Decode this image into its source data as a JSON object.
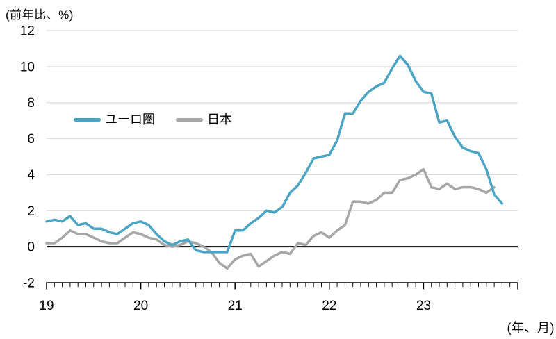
{
  "chart_data": {
    "type": "line",
    "title": "",
    "unit_label": "(前年比、%)",
    "axis_note": "(年、月)",
    "ylabel": "",
    "xlabel": "",
    "ylim": [
      -2,
      12
    ],
    "y_ticks": [
      12,
      10,
      8,
      6,
      4,
      2,
      0,
      -2
    ],
    "x_tick_labels": [
      "19",
      "20",
      "21",
      "22",
      "23"
    ],
    "x_start": "2019-01",
    "frequency": "monthly",
    "grid": "horizontal-only",
    "zero_line": true,
    "legend_position": "inside-top-left",
    "colors": {
      "grid": "#D9D9D9",
      "axis": "#000000",
      "zero_line": "#000000",
      "text": "#000000"
    },
    "series": [
      {
        "name": "ユーロ圏",
        "color": "#4AA5C4",
        "values": [
          1.4,
          1.5,
          1.4,
          1.7,
          1.2,
          1.3,
          1.0,
          1.0,
          0.8,
          0.7,
          1.0,
          1.3,
          1.4,
          1.2,
          0.7,
          0.3,
          0.1,
          0.3,
          0.4,
          -0.2,
          -0.3,
          -0.3,
          -0.3,
          -0.3,
          0.9,
          0.9,
          1.3,
          1.6,
          2.0,
          1.9,
          2.2,
          3.0,
          3.4,
          4.1,
          4.9,
          5.0,
          5.1,
          5.9,
          7.4,
          7.4,
          8.1,
          8.6,
          8.9,
          9.1,
          9.9,
          10.6,
          10.1,
          9.2,
          8.6,
          8.5,
          6.9,
          7.0,
          6.1,
          5.5,
          5.3,
          5.2,
          4.3,
          2.9,
          2.4
        ]
      },
      {
        "name": "日本",
        "color": "#A6A6A6",
        "values": [
          0.2,
          0.2,
          0.5,
          0.9,
          0.7,
          0.7,
          0.5,
          0.3,
          0.2,
          0.2,
          0.5,
          0.8,
          0.7,
          0.5,
          0.4,
          0.1,
          0.0,
          0.1,
          0.3,
          0.2,
          0.0,
          -0.3,
          -0.9,
          -1.2,
          -0.7,
          -0.5,
          -0.4,
          -1.1,
          -0.8,
          -0.5,
          -0.3,
          -0.4,
          0.2,
          0.1,
          0.6,
          0.8,
          0.5,
          0.9,
          1.2,
          2.5,
          2.5,
          2.4,
          2.6,
          3.0,
          3.0,
          3.7,
          3.8,
          4.0,
          4.3,
          3.3,
          3.2,
          3.5,
          3.2,
          3.3,
          3.3,
          3.2,
          3.0,
          3.3
        ]
      }
    ]
  }
}
